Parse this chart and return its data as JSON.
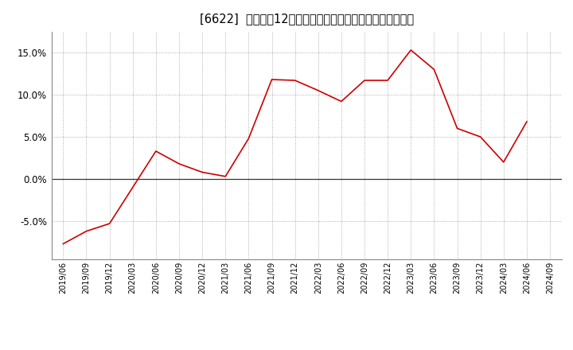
{
  "title": "[6622]  売上高の12か月移動合計の対前年同期増減率の推移",
  "line_color": "#cc0000",
  "background_color": "#ffffff",
  "plot_bg_color": "#ffffff",
  "grid_color": "#999999",
  "ylim": [
    -0.095,
    0.175
  ],
  "yticks": [
    -0.05,
    0.0,
    0.05,
    0.1,
    0.15
  ],
  "dates": [
    "2019/06",
    "2019/09",
    "2019/12",
    "2020/03",
    "2020/06",
    "2020/09",
    "2020/12",
    "2021/03",
    "2021/06",
    "2021/09",
    "2021/12",
    "2022/03",
    "2022/06",
    "2022/09",
    "2022/12",
    "2023/03",
    "2023/06",
    "2023/09",
    "2023/12",
    "2024/03",
    "2024/06",
    "2024/09"
  ],
  "values": [
    -0.077,
    -0.062,
    -0.053,
    -0.01,
    0.033,
    0.018,
    0.008,
    0.003,
    0.048,
    0.118,
    0.117,
    0.105,
    0.092,
    0.117,
    0.117,
    0.153,
    0.13,
    0.06,
    0.05,
    0.02,
    0.068,
    null
  ]
}
